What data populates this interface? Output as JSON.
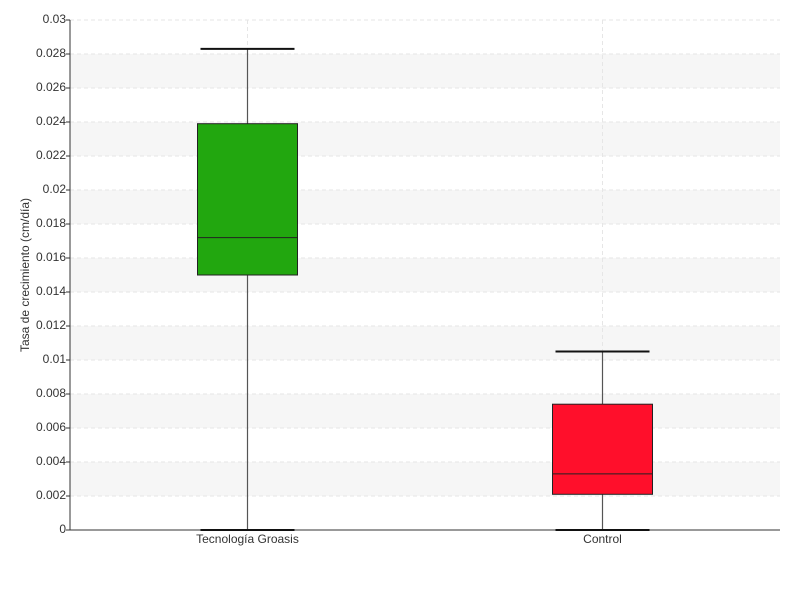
{
  "chart_data": {
    "type": "box",
    "y_label": "Tasa de crecimiento (cm/día)",
    "categories": [
      "Tecnología Groasis",
      "Control"
    ],
    "colors": [
      "#22a70f",
      "#ff0f2b"
    ],
    "boxes": [
      {
        "min": 0,
        "q1": 0.015,
        "median": 0.0172,
        "q3": 0.0239,
        "max": 0.0283
      },
      {
        "min": 0,
        "q1": 0.0021,
        "median": 0.0033,
        "q3": 0.0074,
        "max": 0.0105
      }
    ],
    "ylim": [
      0,
      0.03
    ],
    "yticks": [
      0,
      0.002,
      0.004,
      0.006,
      0.008,
      0.01,
      0.012,
      0.014,
      0.016,
      0.018,
      0.02,
      0.022,
      0.024,
      0.026,
      0.028,
      0.03
    ],
    "grid": true
  }
}
